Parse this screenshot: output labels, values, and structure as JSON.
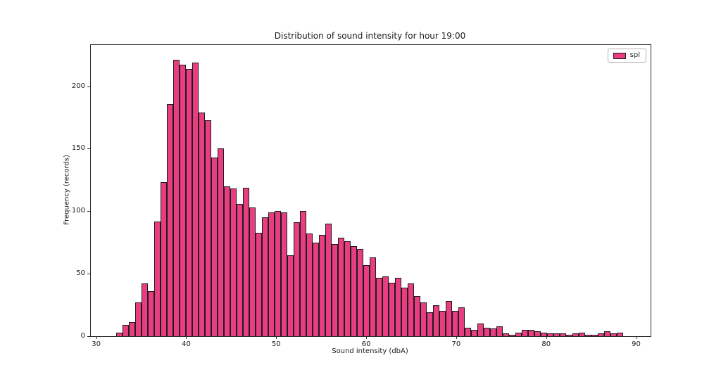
{
  "title": "Distribution of sound intensity for hour 19:00",
  "legend": {
    "label": "spl"
  },
  "colors": {
    "bar_fill": "#E83E81",
    "bar_edge": "#1C1C1C",
    "axis_text": "#1A1A1A"
  },
  "chart_data": {
    "type": "bar",
    "subtype": "histogram",
    "title": "Distribution of sound intensity for hour 19:00",
    "xlabel": "Sound intensity (dbA)",
    "ylabel": "Frequency (records)",
    "legend_entries": [
      "spl"
    ],
    "legend_position": "upper right",
    "grid": false,
    "xlim": [
      29.4,
      91.6
    ],
    "ylim": [
      0,
      233
    ],
    "x_ticks": [
      30,
      40,
      50,
      60,
      70,
      80,
      90
    ],
    "y_ticks": [
      0,
      50,
      100,
      150,
      200
    ],
    "bin_start": 32.2,
    "bin_width": 0.704,
    "values": [
      3,
      9,
      11,
      27,
      42,
      36,
      92,
      123,
      186,
      221,
      217,
      214,
      219,
      179,
      173,
      143,
      150,
      120,
      118,
      106,
      119,
      103,
      83,
      95,
      99,
      100,
      99,
      65,
      91,
      100,
      82,
      75,
      81,
      90,
      74,
      79,
      76,
      72,
      70,
      57,
      63,
      47,
      48,
      43,
      47,
      39,
      42,
      32,
      27,
      19,
      25,
      20,
      28,
      20,
      23,
      7,
      5,
      10,
      7,
      6,
      8,
      2,
      1,
      3,
      5,
      5,
      4,
      3,
      2,
      2,
      2,
      1,
      2,
      3,
      1,
      1,
      2,
      4,
      2,
      3
    ]
  }
}
